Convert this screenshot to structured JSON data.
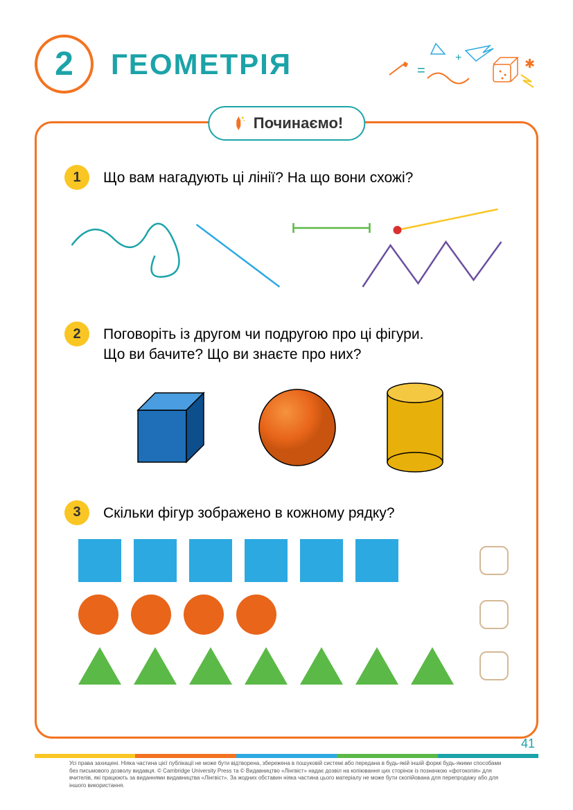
{
  "colors": {
    "teal": "#1ba3a8",
    "orange": "#f37321",
    "yellow": "#f9c623",
    "blue": "#2da9e1",
    "green": "#5bb947",
    "darkteal": "#0d7c84",
    "answerbox_border": "#d4b896"
  },
  "header": {
    "unit_number": "2",
    "title": "ГЕОМЕТРІЯ"
  },
  "start_badge": "Починаємо!",
  "questions": {
    "q1": {
      "num": "1",
      "text": "Що вам нагадують ці лінії? На що вони схожі?",
      "lines": {
        "curve_color": "#1ba3a8",
        "straight_color": "#2da9e1",
        "segment_color": "#5bb947",
        "ray_color": "#f9c623",
        "ray_dot": "#d93030",
        "zigzag_color": "#6b4fa0"
      }
    },
    "q2": {
      "num": "2",
      "text_l1": "Поговоріть із другом чи подругою про ці фігури.",
      "text_l2": "Що ви бачите? Що ви знаєте про них?",
      "cube": {
        "front": "#1e6fb8",
        "top": "#4a9de0",
        "side": "#0d4f8c"
      },
      "sphere": {
        "main": "#e8651a",
        "highlight": "#f5933f"
      },
      "cylinder": {
        "side": "#e8b00a",
        "top": "#f5c842"
      }
    },
    "q3": {
      "num": "3",
      "text": "Скільки фігур зображено в кожному рядку?",
      "rows": [
        {
          "type": "square",
          "count": 6,
          "color": "#2da9e1"
        },
        {
          "type": "circle",
          "count": 4,
          "color": "#e8651a"
        },
        {
          "type": "triangle",
          "count": 7,
          "color": "#5bb947"
        }
      ]
    }
  },
  "page_number": "41",
  "copyright_text": "Усі права захищені. Ніяка частина цієї публікації не може бути відтворена, збережена в пошуковій системі або передана в будь-якій іншій формі будь-якими способами без письмового дозволу видавця. © Cambridge University Press та © Видавництво «Лінгвіст» надає дозвіл на копіювання цих сторінок із позначкою «фотокопія» для вчителів, які працюють за виданнями видавництва «Лінгвіст». За жодних обставин ніяка частина цього матеріалу не може бути скопійована для перепродажу або для іншого використання.",
  "bottom_stripe": [
    "#f9c623",
    "#f37321",
    "#2da9e1",
    "#5bb947",
    "#1ba3a8"
  ]
}
